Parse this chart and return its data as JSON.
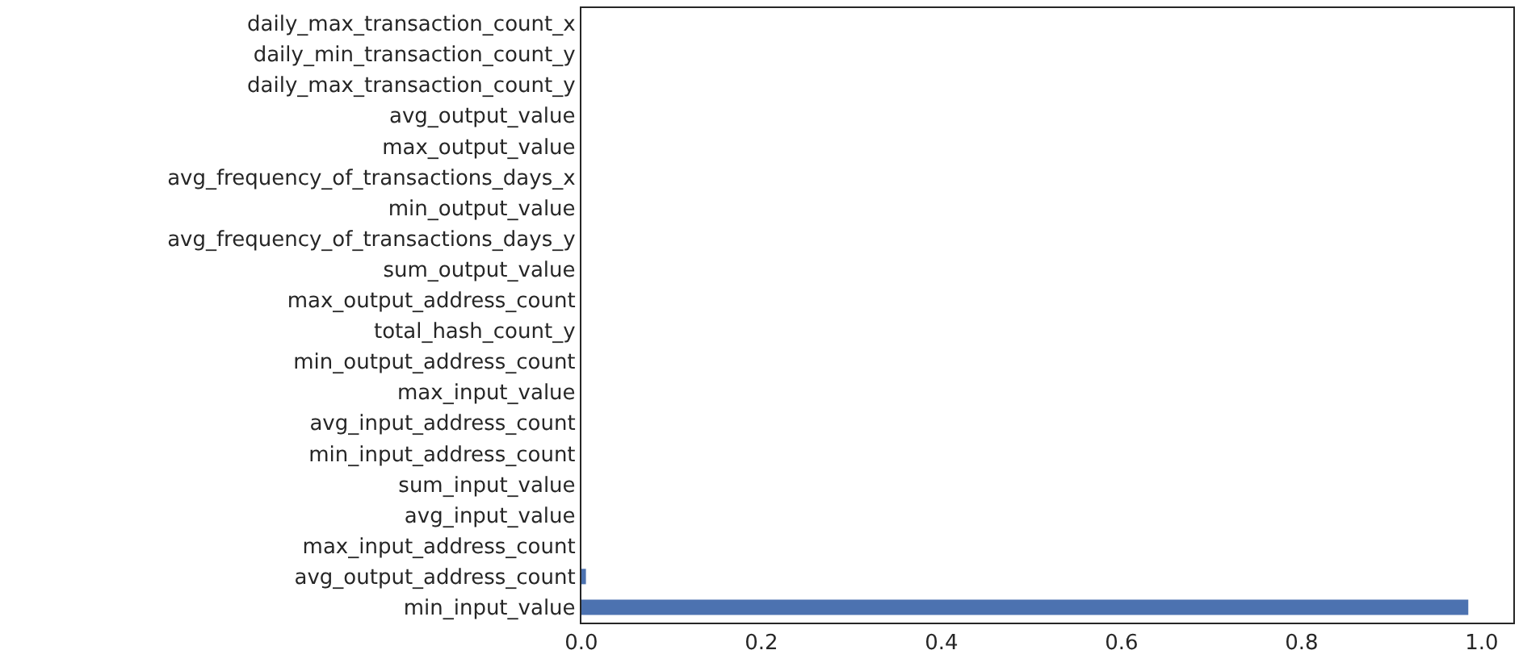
{
  "chart_data": {
    "type": "bar",
    "orientation": "horizontal",
    "color": "#4c72b0",
    "categories": [
      "daily_max_transaction_count_x",
      "daily_min_transaction_count_y",
      "daily_max_transaction_count_y",
      "avg_output_value",
      "max_output_value",
      "avg_frequency_of_transactions_days_x",
      "min_output_value",
      "avg_frequency_of_transactions_days_y",
      "sum_output_value",
      "max_output_address_count",
      "total_hash_count_y",
      "min_output_address_count",
      "max_input_value",
      "avg_input_address_count",
      "min_input_address_count",
      "sum_input_value",
      "avg_input_value",
      "max_input_address_count",
      "avg_output_address_count",
      "min_input_value"
    ],
    "values": [
      0,
      0,
      0,
      0,
      0,
      0,
      0,
      0,
      0,
      0,
      0,
      0,
      0,
      0,
      0,
      0,
      0,
      0,
      0.005,
      0.985
    ],
    "xlim": [
      0,
      1.035
    ],
    "xticks": [
      {
        "value": 0,
        "label": "0.0"
      },
      {
        "value": 0.2,
        "label": "0.2"
      },
      {
        "value": 0.4,
        "label": "0.4"
      },
      {
        "value": 0.6,
        "label": "0.6"
      },
      {
        "value": 0.8,
        "label": "0.8"
      },
      {
        "value": 1.0,
        "label": "1.0"
      }
    ]
  }
}
